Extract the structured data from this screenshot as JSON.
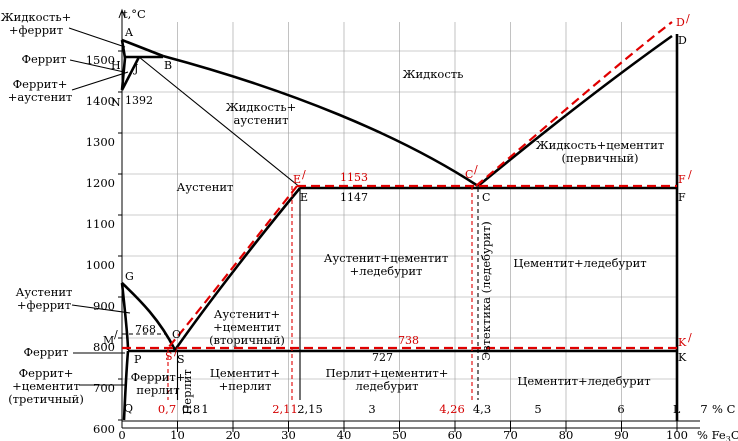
{
  "axes": {
    "y_label": "t,°C",
    "y_ticks": [
      "600",
      "700",
      "800",
      "900",
      "1000",
      "1100",
      "1200",
      "1300",
      "1400",
      "1500"
    ],
    "c_unit": "% C",
    "c_ticks": [
      "1",
      "2,15",
      "3",
      "4,3",
      "5",
      "6",
      "7"
    ],
    "c_ticks_red": [
      "0,7",
      "2,11",
      "4,26"
    ],
    "c_ticks_plain": [
      "0,8"
    ],
    "fe3c_unit": "% Fe",
    "fe3c_sub": "3",
    "fe3c_tail": "C",
    "fe3c_ticks": [
      "0",
      "10",
      "20",
      "30",
      "40",
      "50",
      "60",
      "70",
      "80",
      "90",
      "100"
    ]
  },
  "points": {
    "A": "A",
    "H": "H",
    "J": "J",
    "B": "B",
    "N": "N",
    "n1392": "1392",
    "G": "G",
    "M": "M",
    "O": "O",
    "n768": "768",
    "P": "P",
    "S": "S",
    "Q": "Q",
    "E": "E",
    "n1147": "1147",
    "C": "C",
    "F": "F",
    "D": "D",
    "K": "K",
    "L": "L",
    "Dp": "D",
    "Ep": "E",
    "Cp": "C",
    "Fp": "F",
    "Kp": "K",
    "Sp": "S",
    "prime": "/",
    "t1153": "1153",
    "t738": "738",
    "t727": "727"
  },
  "left_labels": {
    "liq_ferrite": [
      "Жидкость+",
      "+феррит"
    ],
    "ferrite_top": "Феррит",
    "ferrite_aust": [
      "Феррит+",
      "+аустенит"
    ],
    "aust_ferrite": [
      "Аустенит",
      "+феррит"
    ],
    "ferrite_mid": "Феррит",
    "ferrite_cem": [
      "Феррит+",
      "+цементит",
      "(третичный)"
    ]
  },
  "regions": {
    "liquid": "Жидкость",
    "liq_aust": [
      "Жидкость+",
      "аустенит"
    ],
    "liq_cem": [
      "Жидкость+цементит",
      "(первичный)"
    ],
    "austenite": "Аустенит",
    "aust_cem_led": [
      "Аустенит+цементит",
      "+ледебурит"
    ],
    "cem_led_upper": "Цементит+ледебурит",
    "aust_cem2": [
      "Аустенит+",
      "+цементит",
      "(вторичный)"
    ],
    "ferrite_pearlite": [
      "Феррит+",
      "перлит"
    ],
    "pearlite": "Перлит",
    "cem_pearlite": [
      "Цементит+",
      "+перлит"
    ],
    "pearl_cem_led": [
      "Перлит+цементит+",
      "ледебурит"
    ],
    "cem_led_lower": "Цементит+ледебурит",
    "eutectic": "Эвтектика (ледебурит)"
  },
  "colors": {
    "black": "#000000",
    "red": "#e00000",
    "grid": "#9a9a9a"
  }
}
